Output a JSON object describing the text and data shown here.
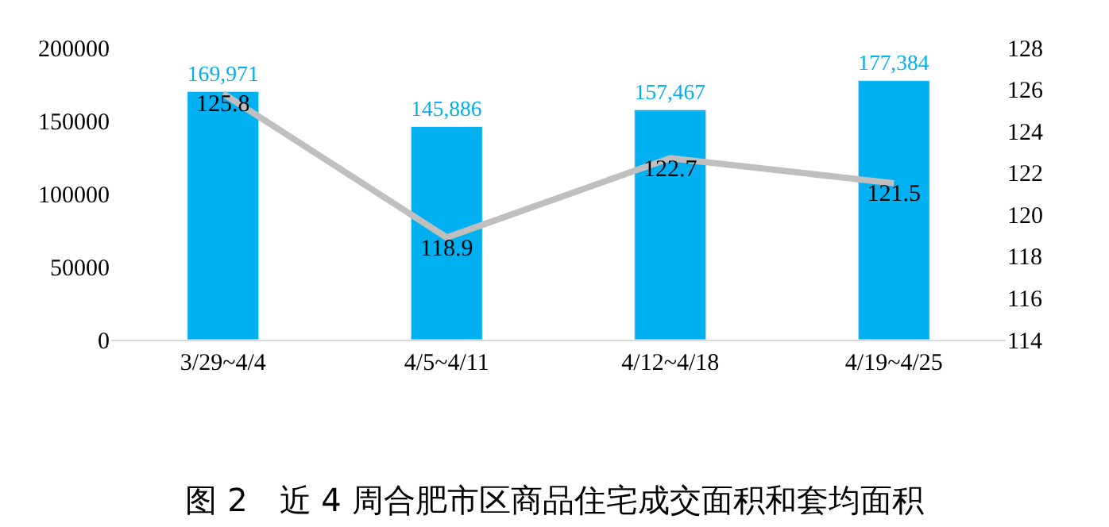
{
  "chart_data": {
    "type": "bar",
    "title": "图 2　近 4 周合肥市区商品住宅成交面积和套均面积",
    "categories": [
      "3/29~4/4",
      "4/5~4/11",
      "4/12~4/18",
      "4/19~4/25"
    ],
    "series": [
      {
        "color": "#00b0f0",
        "values": [
          169971,
          145886,
          157467,
          177384
        ],
        "value_labels": [
          "169,971",
          "145,886",
          "157,467",
          "177,384"
        ]
      },
      {
        "type": "line",
        "axis": "y2",
        "color": "#bfbfbf",
        "values": [
          125.8,
          118.9,
          122.7,
          121.5
        ],
        "value_labels": [
          "125.8",
          "118.9",
          "122.7",
          "121.5"
        ]
      }
    ],
    "ylim": [
      0,
      200000
    ],
    "yticks": [
      0,
      50000,
      100000,
      150000,
      200000
    ],
    "y2lim": [
      114,
      128
    ],
    "y2ticks": [
      114,
      116,
      118,
      120,
      122,
      124,
      126,
      128
    ],
    "marker": "none",
    "line_style": "solid"
  }
}
